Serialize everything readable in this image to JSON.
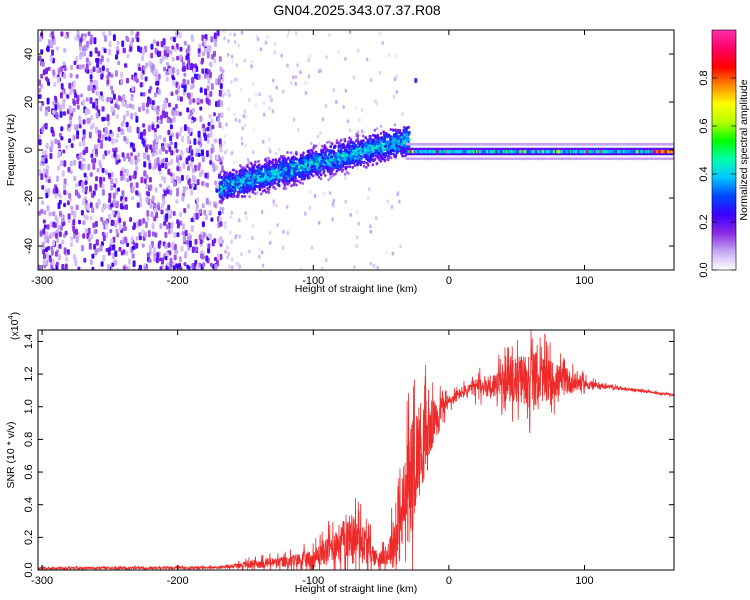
{
  "title": "GN04.2025.343.07.37.R08",
  "colors": {
    "snr_line": "#ee2b2b",
    "axis": "#000000"
  },
  "chart_data": [
    {
      "type": "heatmap",
      "name": "spectrogram",
      "xlabel": "Height of straight line (km)",
      "ylabel": "Frequency (Hz)",
      "xlim": [
        -303,
        166
      ],
      "ylim": [
        -50,
        50
      ],
      "xticks": [
        -300,
        -200,
        -100,
        0,
        100
      ],
      "xtick_labels": [
        "-300",
        "-200",
        "-100",
        "0",
        "100"
      ],
      "yticks": [
        -40,
        -20,
        0,
        20,
        40
      ],
      "ytick_labels": [
        "-40",
        "-20",
        "0",
        "20",
        "40"
      ],
      "colorbar": {
        "label": "Normalized spectral amplitude",
        "range": [
          0,
          1
        ],
        "ticks": [
          0.0,
          0.2,
          0.4,
          0.6,
          0.8
        ],
        "tick_labels": [
          "0.0",
          "0.2",
          "0.4",
          "0.6",
          "0.8"
        ],
        "colormap": [
          "#ffffff",
          "#c4a8f5",
          "#8a2be2",
          "#3a00ff",
          "#0046ff",
          "#00c8ff",
          "#00ffaa",
          "#00ff00",
          "#b4ff00",
          "#ffff00",
          "#ff8800",
          "#ff0000",
          "#ff0064",
          "#ff2db0"
        ]
      },
      "regions": [
        {
          "desc": "noise",
          "x_range": [
            -303,
            -168
          ],
          "freq_range": [
            -50,
            50
          ],
          "amplitude": [
            0.05,
            0.25
          ]
        },
        {
          "desc": "sparse-noise",
          "x_range": [
            -168,
            -35
          ],
          "freq_range": [
            -50,
            50
          ],
          "amplitude": [
            0.02,
            0.08
          ]
        },
        {
          "desc": "rising-trace",
          "x_range": [
            -170,
            -30
          ],
          "freq_start": -15,
          "freq_end": 5,
          "amplitude": [
            0.2,
            0.45
          ]
        },
        {
          "desc": "isolated-spot",
          "x": -25,
          "freq": 29,
          "amplitude": 0.2
        },
        {
          "desc": "carrier-line",
          "x_range": [
            -32,
            166
          ],
          "freq": -1,
          "amplitude": [
            0.3,
            1.0
          ]
        }
      ]
    },
    {
      "type": "line",
      "name": "snr",
      "xlabel": "Height of straight line (km)",
      "ylabel": "SNR (10 * v/v)",
      "y_multiplier_label": "(x10",
      "y_multiplier_exp": "4",
      "y_multiplier_close": ")",
      "xlim": [
        -303,
        166
      ],
      "ylim": [
        0,
        1.47
      ],
      "xticks": [
        -300,
        -200,
        -100,
        0,
        100
      ],
      "xtick_labels": [
        "-300",
        "-200",
        "-100",
        "0",
        "100"
      ],
      "yticks": [
        0.0,
        0.2,
        0.4,
        0.6,
        0.8,
        1.0,
        1.2,
        1.4
      ],
      "ytick_labels": [
        "0.0",
        "0.2",
        "0.4",
        "0.6",
        "0.8",
        "1.0",
        "1.2",
        "1.4"
      ],
      "envelope": {
        "x": [
          -303,
          -170,
          -160,
          -140,
          -120,
          -100,
          -90,
          -80,
          -70,
          -60,
          -55,
          -50,
          -45,
          -40,
          -35,
          -30,
          -25,
          -20,
          -15,
          -10,
          -5,
          0,
          5,
          10,
          20,
          30,
          40,
          50,
          60,
          70,
          80,
          90,
          100,
          110,
          120,
          140,
          166
        ],
        "mean": [
          0.01,
          0.015,
          0.025,
          0.04,
          0.05,
          0.07,
          0.12,
          0.18,
          0.22,
          0.15,
          0.08,
          0.07,
          0.1,
          0.18,
          0.3,
          0.5,
          0.68,
          0.78,
          0.84,
          0.93,
          1.0,
          1.03,
          1.06,
          1.09,
          1.12,
          1.13,
          1.14,
          1.16,
          1.18,
          1.17,
          1.16,
          1.15,
          1.14,
          1.13,
          1.12,
          1.1,
          1.07
        ],
        "spread": [
          0.008,
          0.01,
          0.02,
          0.04,
          0.05,
          0.08,
          0.12,
          0.16,
          0.2,
          0.14,
          0.08,
          0.06,
          0.1,
          0.25,
          0.35,
          0.45,
          0.45,
          0.4,
          0.3,
          0.15,
          0.1,
          0.06,
          0.05,
          0.05,
          0.08,
          0.1,
          0.15,
          0.2,
          0.25,
          0.2,
          0.15,
          0.1,
          0.05,
          0.02,
          0.015,
          0.01,
          0.01
        ]
      }
    }
  ]
}
